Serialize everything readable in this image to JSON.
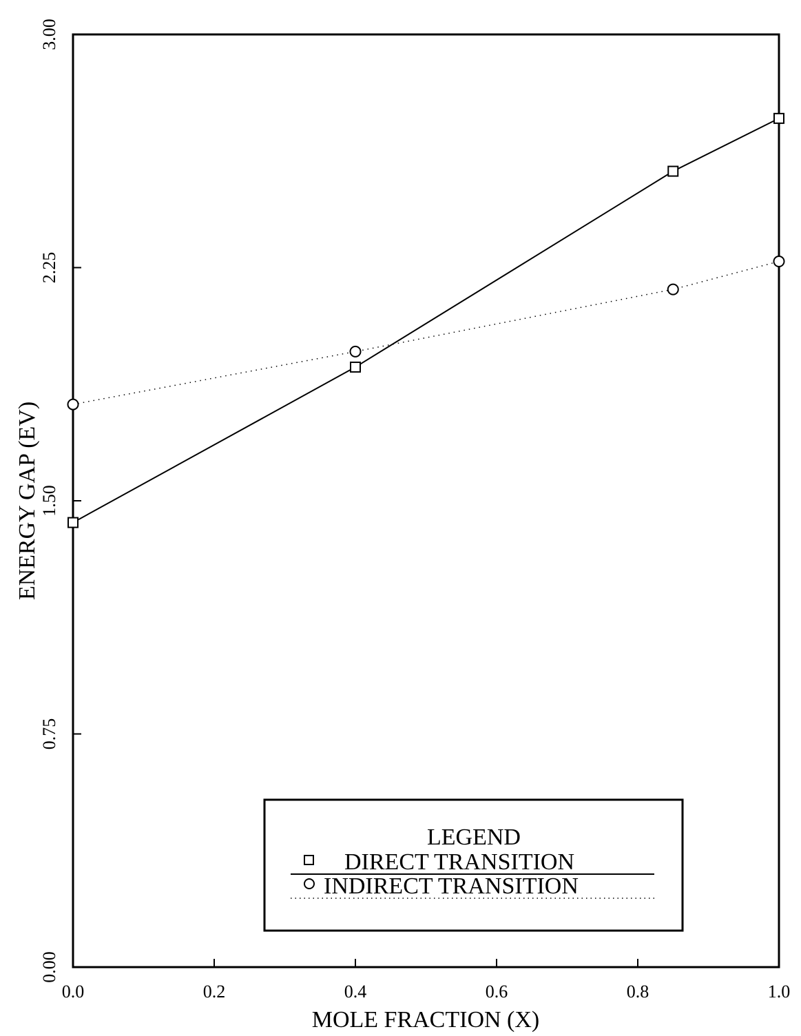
{
  "chart_data": {
    "type": "line",
    "title": "",
    "xlabel": "MOLE FRACTION (X)",
    "ylabel": "ENERGY GAP (EV)",
    "xlim": [
      0.0,
      1.0
    ],
    "ylim": [
      0.0,
      3.0
    ],
    "x_ticks": [
      0.0,
      0.2,
      0.4,
      0.6,
      0.8,
      1.0
    ],
    "x_tick_labels": [
      "0.0",
      "0.2",
      "0.4",
      "0.6",
      "0.8",
      "1.0"
    ],
    "y_ticks": [
      0.0,
      0.75,
      1.5,
      2.25,
      3.0
    ],
    "y_tick_labels": [
      "0.00",
      "0.75",
      "1.50",
      "2.25",
      "3.00"
    ],
    "grid": false,
    "legend": {
      "title": "LEGEND",
      "placement": "bottom-right"
    },
    "series": [
      {
        "name": "DIRECT TRANSITION",
        "marker": "square",
        "line_style": "solid",
        "x": [
          0.0,
          0.4,
          0.85,
          1.0
        ],
        "y": [
          1.43,
          1.93,
          2.56,
          2.73
        ]
      },
      {
        "name": "INDIRECT TRANSITION",
        "marker": "circle",
        "line_style": "dotted",
        "x": [
          0.0,
          0.4,
          0.85,
          1.0
        ],
        "y": [
          1.81,
          1.98,
          2.18,
          2.27
        ]
      }
    ]
  }
}
